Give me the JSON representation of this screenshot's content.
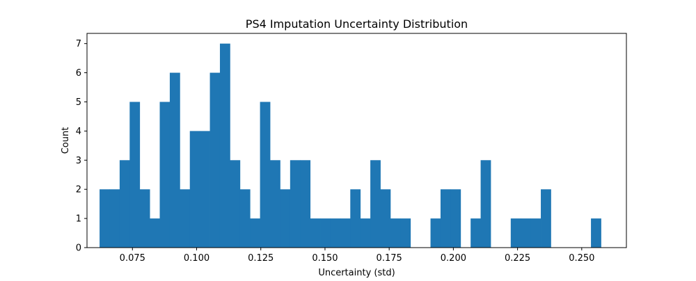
{
  "chart_data": {
    "type": "bar",
    "title": "PS4 Imputation Uncertainty Distribution",
    "xlabel": "Uncertainty (std)",
    "ylabel": "Count",
    "xlim": [
      0.0573,
      0.2674
    ],
    "ylim": [
      0,
      7.35
    ],
    "x_ticks": [
      0.075,
      0.1,
      0.125,
      0.15,
      0.175,
      0.2,
      0.225,
      0.25
    ],
    "x_tick_labels": [
      "0.075",
      "0.100",
      "0.125",
      "0.150",
      "0.175",
      "0.200",
      "0.225",
      "0.250"
    ],
    "y_ticks": [
      0,
      1,
      2,
      3,
      4,
      5,
      6,
      7
    ],
    "y_tick_labels": [
      "0",
      "1",
      "2",
      "3",
      "4",
      "5",
      "6",
      "7"
    ],
    "grid": false,
    "legend": false,
    "bar_color": "#1f77b4",
    "bins": {
      "start": 0.0622,
      "width": 0.003906,
      "counts": [
        2,
        2,
        3,
        5,
        2,
        1,
        5,
        6,
        2,
        4,
        4,
        6,
        7,
        3,
        2,
        1,
        5,
        3,
        2,
        3,
        3,
        1,
        1,
        1,
        1,
        2,
        1,
        3,
        2,
        1,
        1,
        0,
        0,
        1,
        2,
        2,
        0,
        1,
        3,
        0,
        0,
        1,
        1,
        1,
        2,
        0,
        0,
        0,
        0,
        1
      ]
    }
  }
}
